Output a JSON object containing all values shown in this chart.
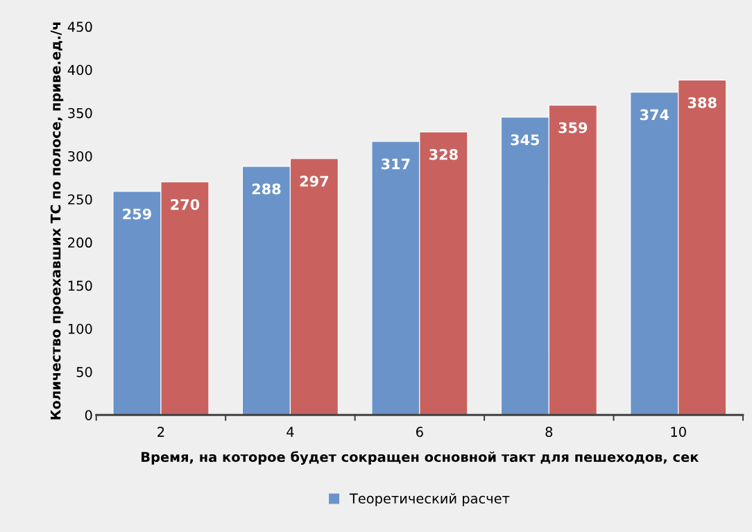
{
  "chart_data": {
    "type": "bar",
    "xlabel": "Время, на которое будет сокращен основной такт для пешеходов, сек",
    "ylabel": "Количество проехавших ТС по полосе, приве.ед./ч",
    "categories": [
      "2",
      "4",
      "6",
      "8",
      "10"
    ],
    "series": [
      {
        "name": "Теоретический расчет",
        "color": "#6a94c9",
        "values": [
          259,
          288,
          317,
          345,
          374
        ]
      },
      {
        "color": "#c9625f",
        "values": [
          270,
          297,
          328,
          359,
          388
        ]
      }
    ],
    "ylim": [
      0,
      450
    ],
    "yticks": [
      0,
      50,
      100,
      150,
      200,
      250,
      300,
      350,
      400,
      450
    ],
    "grid": false,
    "legend": "bottom",
    "data_labels": true
  }
}
